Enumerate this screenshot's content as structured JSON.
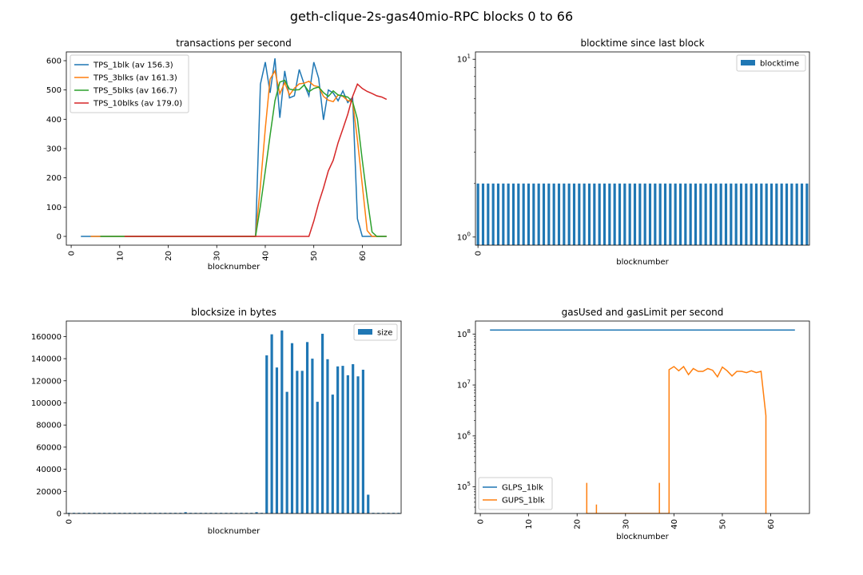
{
  "figure": {
    "title": "geth-clique-2s-gas40mio-RPC blocks 0 to 66"
  },
  "chart_data": [
    {
      "id": "tps",
      "type": "line",
      "title": "transactions per second",
      "xlabel": "blocknumber",
      "ylabel": "",
      "xlim": [
        -1,
        68
      ],
      "ylim": [
        -30,
        630
      ],
      "xticks": [
        0,
        10,
        20,
        30,
        40,
        50,
        60
      ],
      "yticks": [
        0,
        100,
        200,
        300,
        400,
        500,
        600
      ],
      "legend": "top-left",
      "series": [
        {
          "name": "TPS_1blk (av 156.3)",
          "color": "#1f77b4",
          "x": [
            2,
            3,
            4,
            5,
            6,
            7,
            8,
            9,
            10,
            11,
            12,
            13,
            14,
            15,
            16,
            17,
            18,
            19,
            20,
            21,
            22,
            23,
            24,
            25,
            26,
            27,
            28,
            29,
            30,
            31,
            32,
            33,
            34,
            35,
            36,
            37,
            38,
            39,
            40,
            41,
            42,
            43,
            44,
            45,
            46,
            47,
            48,
            49,
            50,
            51,
            52,
            53,
            54,
            55,
            56,
            57,
            58,
            59,
            60,
            61,
            62,
            63,
            64,
            65
          ],
          "y": [
            0,
            0,
            0,
            0,
            0,
            0,
            0,
            0,
            0,
            0,
            0,
            0,
            0,
            0,
            0,
            0,
            0,
            0,
            0,
            0,
            0,
            0,
            0,
            0,
            0,
            0,
            0,
            0,
            0,
            0,
            0,
            0,
            0,
            0,
            0,
            0,
            0,
            520,
            595,
            490,
            608,
            405,
            565,
            473,
            480,
            570,
            520,
            480,
            595,
            540,
            398,
            500,
            490,
            463,
            497,
            457,
            475,
            60,
            0,
            0,
            0,
            0,
            0,
            0
          ]
        },
        {
          "name": "TPS_3blks (av 161.3)",
          "color": "#ff7f0e",
          "x": [
            4,
            5,
            6,
            7,
            8,
            9,
            10,
            11,
            12,
            13,
            14,
            15,
            16,
            17,
            18,
            19,
            20,
            21,
            22,
            23,
            24,
            25,
            26,
            27,
            28,
            29,
            30,
            31,
            32,
            33,
            34,
            35,
            36,
            37,
            38,
            39,
            40,
            41,
            42,
            43,
            44,
            45,
            46,
            47,
            48,
            49,
            50,
            51,
            52,
            53,
            54,
            55,
            56,
            57,
            58,
            59,
            60,
            61,
            62,
            63,
            64,
            65
          ],
          "y": [
            0,
            0,
            0,
            0,
            0,
            0,
            0,
            0,
            0,
            0,
            0,
            0,
            0,
            0,
            0,
            0,
            0,
            0,
            0,
            0,
            0,
            0,
            0,
            0,
            0,
            0,
            0,
            0,
            0,
            0,
            0,
            0,
            0,
            0,
            0,
            173,
            368,
            537,
            565,
            487,
            525,
            483,
            506,
            521,
            523,
            530,
            515,
            511,
            478,
            465,
            460,
            483,
            478,
            464,
            460,
            330,
            175,
            20,
            0,
            0,
            0,
            0
          ]
        },
        {
          "name": "TPS_5blks (av 166.7)",
          "color": "#2ca02c",
          "x": [
            6,
            7,
            8,
            9,
            10,
            11,
            12,
            13,
            14,
            15,
            16,
            17,
            18,
            19,
            20,
            21,
            22,
            23,
            24,
            25,
            26,
            27,
            28,
            29,
            30,
            31,
            32,
            33,
            34,
            35,
            36,
            37,
            38,
            39,
            40,
            41,
            42,
            43,
            44,
            45,
            46,
            47,
            48,
            49,
            50,
            51,
            52,
            53,
            54,
            55,
            56,
            57,
            58,
            59,
            60,
            61,
            62,
            63,
            64,
            65
          ],
          "y": [
            0,
            0,
            0,
            0,
            0,
            0,
            0,
            0,
            0,
            0,
            0,
            0,
            0,
            0,
            0,
            0,
            0,
            0,
            0,
            0,
            0,
            0,
            0,
            0,
            0,
            0,
            0,
            0,
            0,
            0,
            0,
            0,
            0,
            104,
            223,
            345,
            463,
            527,
            533,
            503,
            500,
            501,
            517,
            494,
            505,
            510,
            491,
            478,
            497,
            483,
            480,
            476,
            460,
            400,
            260,
            130,
            15,
            0,
            0,
            0
          ]
        },
        {
          "name": "TPS_10blks (av 179.0)",
          "color": "#d62728",
          "x": [
            11,
            12,
            13,
            14,
            15,
            16,
            17,
            18,
            19,
            20,
            21,
            22,
            23,
            24,
            25,
            26,
            27,
            28,
            29,
            30,
            31,
            32,
            33,
            34,
            35,
            36,
            37,
            38,
            39,
            40,
            41,
            42,
            43,
            44,
            45,
            46,
            47,
            48,
            49,
            50,
            51,
            52,
            53,
            54,
            55,
            56,
            57,
            58,
            59,
            60,
            61,
            62,
            63,
            64,
            65
          ],
          "y": [
            0,
            0,
            0,
            0,
            0,
            0,
            0,
            0,
            0,
            0,
            0,
            0,
            0,
            0,
            0,
            0,
            0,
            0,
            0,
            0,
            0,
            0,
            0,
            0,
            0,
            0,
            0,
            0,
            0,
            0,
            0,
            0,
            0,
            0,
            0,
            0,
            0,
            0,
            0,
            52,
            114,
            165,
            224,
            260,
            320,
            367,
            417,
            478,
            520,
            505,
            495,
            488,
            480,
            476,
            468
          ]
        }
      ]
    },
    {
      "id": "blocktime",
      "type": "bar",
      "title": "blocktime since last block",
      "xlabel": "blocknumber",
      "ylabel": "",
      "scale": "log",
      "ylim": [
        0.9,
        11
      ],
      "yticks": [
        "10⁰",
        "10¹"
      ],
      "xticks": [
        0
      ],
      "legend": "top-right",
      "series": [
        {
          "name": "blocktime",
          "color": "#1f77b4",
          "values": [
            2,
            2,
            2,
            2,
            2,
            2,
            2,
            2,
            2,
            2,
            2,
            2,
            2,
            2,
            2,
            2,
            2,
            2,
            2,
            2,
            2,
            2,
            2,
            2,
            2,
            2,
            2,
            2,
            2,
            2,
            2,
            2,
            2,
            2,
            2,
            2,
            2,
            2,
            2,
            2,
            2,
            2,
            2,
            2,
            2,
            2,
            2,
            2,
            2,
            2,
            2,
            2,
            2,
            2,
            2,
            2,
            2,
            2,
            2,
            2,
            2,
            2,
            2,
            2,
            2,
            2
          ]
        }
      ]
    },
    {
      "id": "blocksize",
      "type": "bar",
      "title": "blocksize in bytes",
      "xlabel": "blocknumber",
      "ylabel": "",
      "ylim": [
        0,
        174000
      ],
      "yticks": [
        0,
        20000,
        40000,
        60000,
        80000,
        100000,
        120000,
        140000,
        160000
      ],
      "xticks": [
        0
      ],
      "legend": "top-right",
      "series": [
        {
          "name": "size",
          "color": "#1f77b4",
          "values": [
            600,
            600,
            600,
            600,
            600,
            600,
            600,
            600,
            600,
            600,
            600,
            600,
            600,
            600,
            600,
            600,
            600,
            600,
            600,
            600,
            600,
            600,
            600,
            1200,
            600,
            600,
            600,
            600,
            600,
            600,
            600,
            600,
            600,
            600,
            600,
            600,
            600,
            1200,
            600,
            143000,
            162000,
            132000,
            165500,
            110000,
            154000,
            129000,
            129000,
            155000,
            140000,
            101000,
            162500,
            139500,
            107500,
            133000,
            133500,
            125000,
            135000,
            124000,
            130000,
            17000,
            600,
            600,
            600,
            600,
            600,
            600
          ]
        }
      ]
    },
    {
      "id": "gas",
      "type": "line",
      "title": "gasUsed and gasLimit per second",
      "xlabel": "blocknumber",
      "ylabel": "",
      "scale": "log",
      "xlim": [
        -1,
        68
      ],
      "ylim": [
        30000,
        180000000
      ],
      "xticks": [
        0,
        10,
        20,
        30,
        40,
        50,
        60
      ],
      "yticks": [
        "10⁵",
        "10⁶",
        "10⁷",
        "10⁸"
      ],
      "legend": "bottom-left",
      "series": [
        {
          "name": "GLPS_1blk",
          "color": "#1f77b4",
          "x": [
            2,
            65
          ],
          "y": [
            120000000,
            120000000
          ]
        },
        {
          "name": "GUPS_1blk",
          "color": "#ff7f0e",
          "x": [
            22,
            22,
            22,
            24,
            24,
            24,
            37,
            37,
            37,
            39,
            39,
            40,
            41,
            42,
            43,
            44,
            45,
            46,
            47,
            48,
            49,
            50,
            51,
            52,
            53,
            54,
            55,
            56,
            57,
            58,
            59,
            59
          ],
          "y": [
            30000,
            120000,
            30000,
            30000,
            45000,
            30000,
            30000,
            120000,
            30000,
            30000,
            20000000,
            23000000,
            19000000,
            23000000,
            16000000,
            21000000,
            18500000,
            18500000,
            21000000,
            19500000,
            14500000,
            22500000,
            19000000,
            15000000,
            18500000,
            18500000,
            17500000,
            19000000,
            17500000,
            18500000,
            2500000,
            30000
          ]
        }
      ]
    }
  ]
}
